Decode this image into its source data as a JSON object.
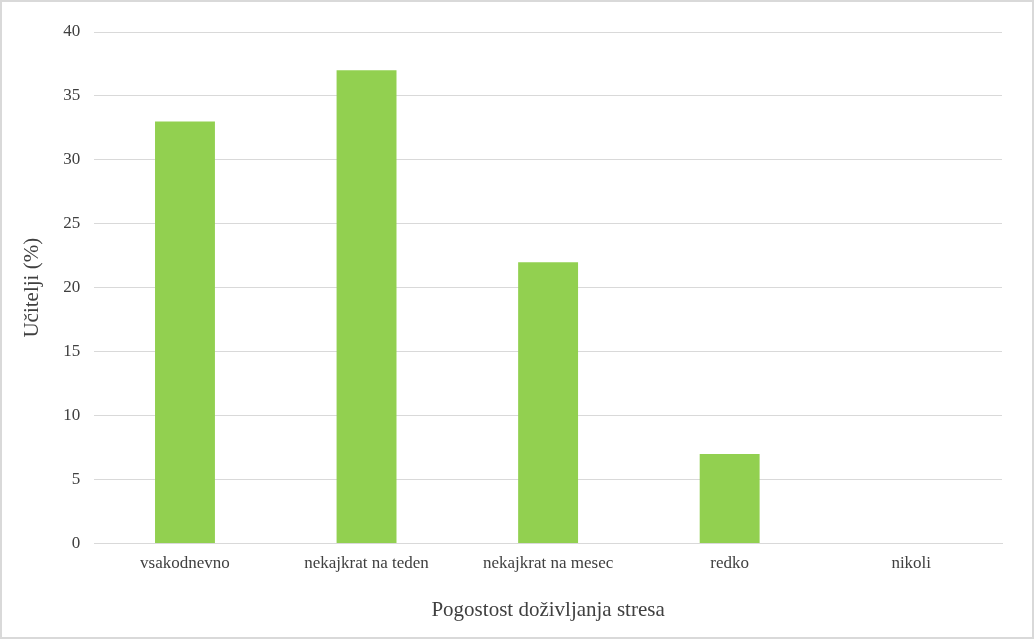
{
  "chart_data": {
    "type": "bar",
    "xlabel": "Pogostost doživljanja stresa",
    "ylabel": "Učitelji (%)",
    "categories": [
      "vsakodnevno",
      "nekajkrat na teden",
      "nekajkrat na mesec",
      "redko",
      "nikoli"
    ],
    "values": [
      33,
      37,
      22,
      7,
      0
    ],
    "color": "#92d050",
    "ylim": [
      0,
      40
    ],
    "yticks": [
      0,
      5,
      10,
      15,
      20,
      25,
      30,
      35,
      40
    ],
    "grid": "y",
    "legend": false
  }
}
